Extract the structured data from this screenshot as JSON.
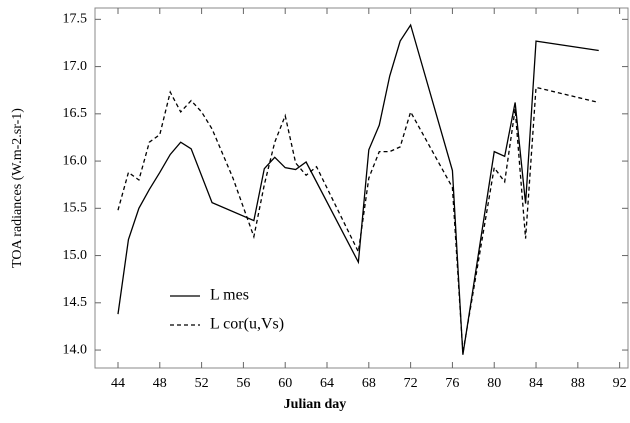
{
  "chart_data": {
    "type": "line",
    "x_label": "Julian day",
    "y_label": "TOA radiances (W.m-2.sr-1)",
    "xlim": [
      41.8,
      92.8
    ],
    "ylim": [
      13.81,
      17.62
    ],
    "xticks": [
      44,
      48,
      52,
      56,
      60,
      64,
      68,
      72,
      76,
      80,
      84,
      88,
      92
    ],
    "yticks": [
      {
        "value": 14,
        "label": "14.0"
      },
      {
        "value": 14.5,
        "label": "14.5"
      },
      {
        "value": 15,
        "label": "15.0"
      },
      {
        "value": 15.5,
        "label": "15.5"
      },
      {
        "value": 16,
        "label": "16.0"
      },
      {
        "value": 16.5,
        "label": "16.5"
      },
      {
        "value": 17,
        "label": "17.0"
      },
      {
        "value": 17.5,
        "label": "17.5"
      }
    ],
    "legend": "lower-left",
    "series": [
      {
        "name": "L mes",
        "color": "#000000",
        "dash": "none",
        "x": [
          44,
          45,
          46,
          47,
          48,
          49,
          50,
          51,
          53,
          57,
          58,
          59,
          60,
          61,
          62,
          67,
          68,
          69,
          70,
          71,
          72,
          76,
          77,
          80,
          81,
          82,
          83,
          84,
          90
        ],
        "values": [
          14.38,
          15.17,
          15.5,
          15.7,
          15.88,
          16.07,
          16.2,
          16.13,
          15.56,
          15.37,
          15.92,
          16.04,
          15.93,
          15.91,
          15.99,
          14.93,
          16.12,
          16.38,
          16.9,
          17.27,
          17.44,
          15.9,
          13.95,
          16.1,
          16.05,
          16.62,
          15.55,
          17.27,
          17.17
        ]
      },
      {
        "name": "L cor(u,Vs)",
        "color": "#000000",
        "dash": "4,3",
        "x": [
          44,
          45,
          46,
          47,
          48,
          49,
          50,
          51,
          52,
          53,
          55,
          57,
          58,
          59,
          60,
          61,
          62,
          63,
          67,
          68,
          69,
          70,
          71,
          72,
          76,
          77,
          80,
          81,
          82,
          83,
          84,
          90
        ],
        "values": [
          15.48,
          15.88,
          15.8,
          16.2,
          16.28,
          16.73,
          16.52,
          16.64,
          16.52,
          16.34,
          15.82,
          15.2,
          15.75,
          16.2,
          16.48,
          15.98,
          15.85,
          15.94,
          15.04,
          15.82,
          16.1,
          16.1,
          16.15,
          16.52,
          15.72,
          13.97,
          15.93,
          15.78,
          16.55,
          15.18,
          16.78,
          16.62
        ]
      }
    ]
  }
}
